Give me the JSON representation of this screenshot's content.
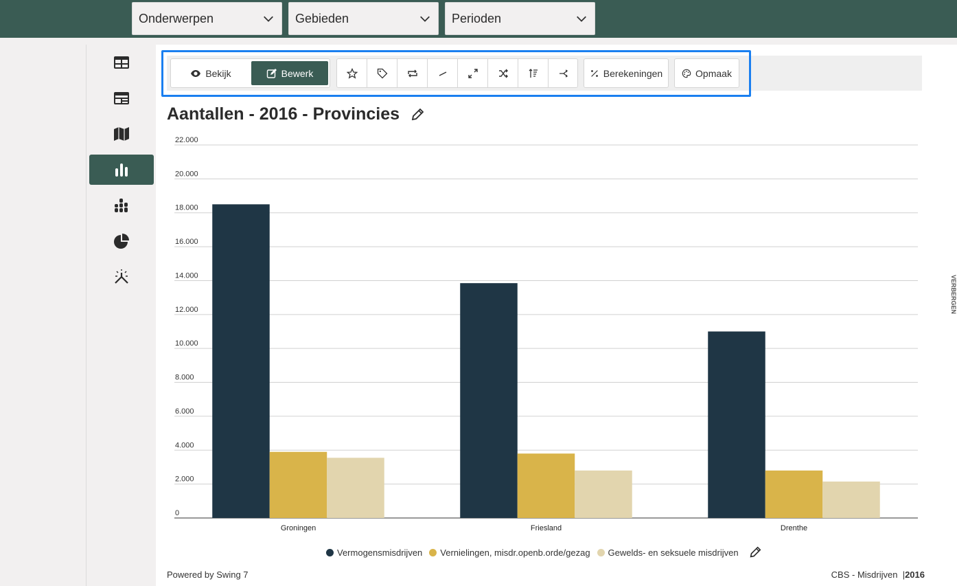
{
  "filters": [
    {
      "label": "Onderwerpen"
    },
    {
      "label": "Gebieden"
    },
    {
      "label": "Perioden"
    }
  ],
  "sidebar": {
    "items": [
      {
        "icon": "table-icon",
        "active": false
      },
      {
        "icon": "dashboard-icon",
        "active": false
      },
      {
        "icon": "map-icon",
        "active": false
      },
      {
        "icon": "bar-chart-icon",
        "active": true
      },
      {
        "icon": "stacked-chart-icon",
        "active": false
      },
      {
        "icon": "pie-chart-icon",
        "active": false
      },
      {
        "icon": "magic-icon",
        "active": false
      }
    ]
  },
  "toolbar": {
    "view_label": "Bekijk",
    "edit_label": "Bewerk",
    "icons": [
      "star-icon",
      "tag-icon",
      "swap-icon",
      "line-icon",
      "resize-icon",
      "shuffle-icon",
      "sort-icon",
      "share-icon"
    ],
    "calc_label": "Berekeningen",
    "format_label": "Opmaak"
  },
  "chart_title": "Aantallen - 2016 - Provincies",
  "side_tab_label": "VERBERGEN",
  "footer": {
    "powered": "Powered by Swing 7",
    "source": "CBS - Misdrijven",
    "separator": "|",
    "year": "2016"
  },
  "colors": {
    "accent": "#3a5c54",
    "highlight": "#1a7ff0"
  },
  "chart_data": {
    "type": "bar",
    "categories": [
      "Groningen",
      "Friesland",
      "Drenthe"
    ],
    "series": [
      {
        "name": "Vermogensmisdrijven",
        "color": "#1f3645",
        "values": [
          18500,
          13850,
          11000
        ]
      },
      {
        "name": "Vernielingen, misdr.openb.orde/gezag",
        "color": "#d9b44a",
        "values": [
          3900,
          3800,
          2800
        ]
      },
      {
        "name": "Gewelds- en seksuele misdrijven",
        "color": "#e2d5ae",
        "values": [
          3550,
          2800,
          2150
        ]
      }
    ],
    "ylim": [
      0,
      22000
    ],
    "yticks": [
      "0",
      "2.000",
      "4.000",
      "6.000",
      "8.000",
      "10.000",
      "12.000",
      "14.000",
      "16.000",
      "18.000",
      "20.000",
      "22.000"
    ],
    "ytick_values": [
      0,
      2000,
      4000,
      6000,
      8000,
      10000,
      12000,
      14000,
      16000,
      18000,
      20000,
      22000
    ],
    "grid": true,
    "legend": "bottom"
  }
}
